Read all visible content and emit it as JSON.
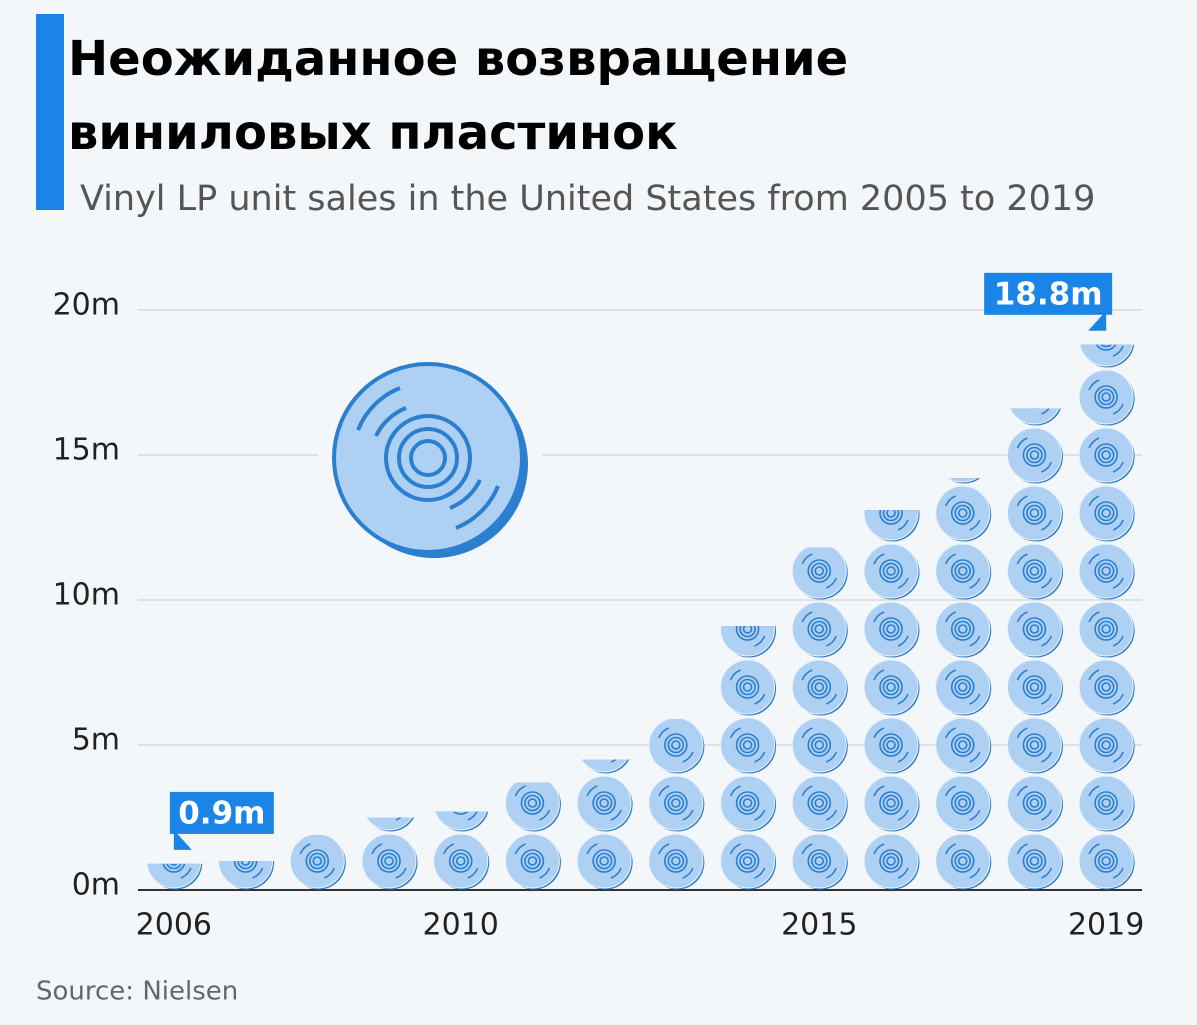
{
  "chart_data": {
    "type": "disc-stack",
    "title": "Неожиданное возвращение виниловых пластинок",
    "subtitle": "Vinyl LP unit sales in the United States from 2005 to 2019",
    "source": "Source: Nielsen",
    "x": [
      2006,
      2007,
      2008,
      2009,
      2010,
      2011,
      2012,
      2013,
      2014,
      2015,
      2016,
      2017,
      2018,
      2019
    ],
    "values": [
      0.9,
      1.0,
      1.9,
      2.5,
      2.7,
      3.7,
      4.5,
      5.9,
      9.1,
      11.8,
      13.1,
      14.2,
      16.6,
      18.8
    ],
    "value_labels": [
      "0.9m",
      null,
      null,
      null,
      null,
      null,
      null,
      null,
      null,
      null,
      null,
      null,
      null,
      "18.8m"
    ],
    "xlim": [
      2005.5,
      2019.5
    ],
    "xticks": [
      2006,
      2010,
      2015,
      2019
    ],
    "ylim": [
      0,
      20
    ],
    "yticks": [
      {
        "value": 0,
        "label": "0m"
      },
      {
        "value": 5,
        "label": "5m"
      },
      {
        "value": 10,
        "label": "10m"
      },
      {
        "value": 15,
        "label": "15m"
      },
      {
        "value": 20,
        "label": "20m"
      }
    ],
    "grid": true,
    "color": "#aed0f2"
  }
}
